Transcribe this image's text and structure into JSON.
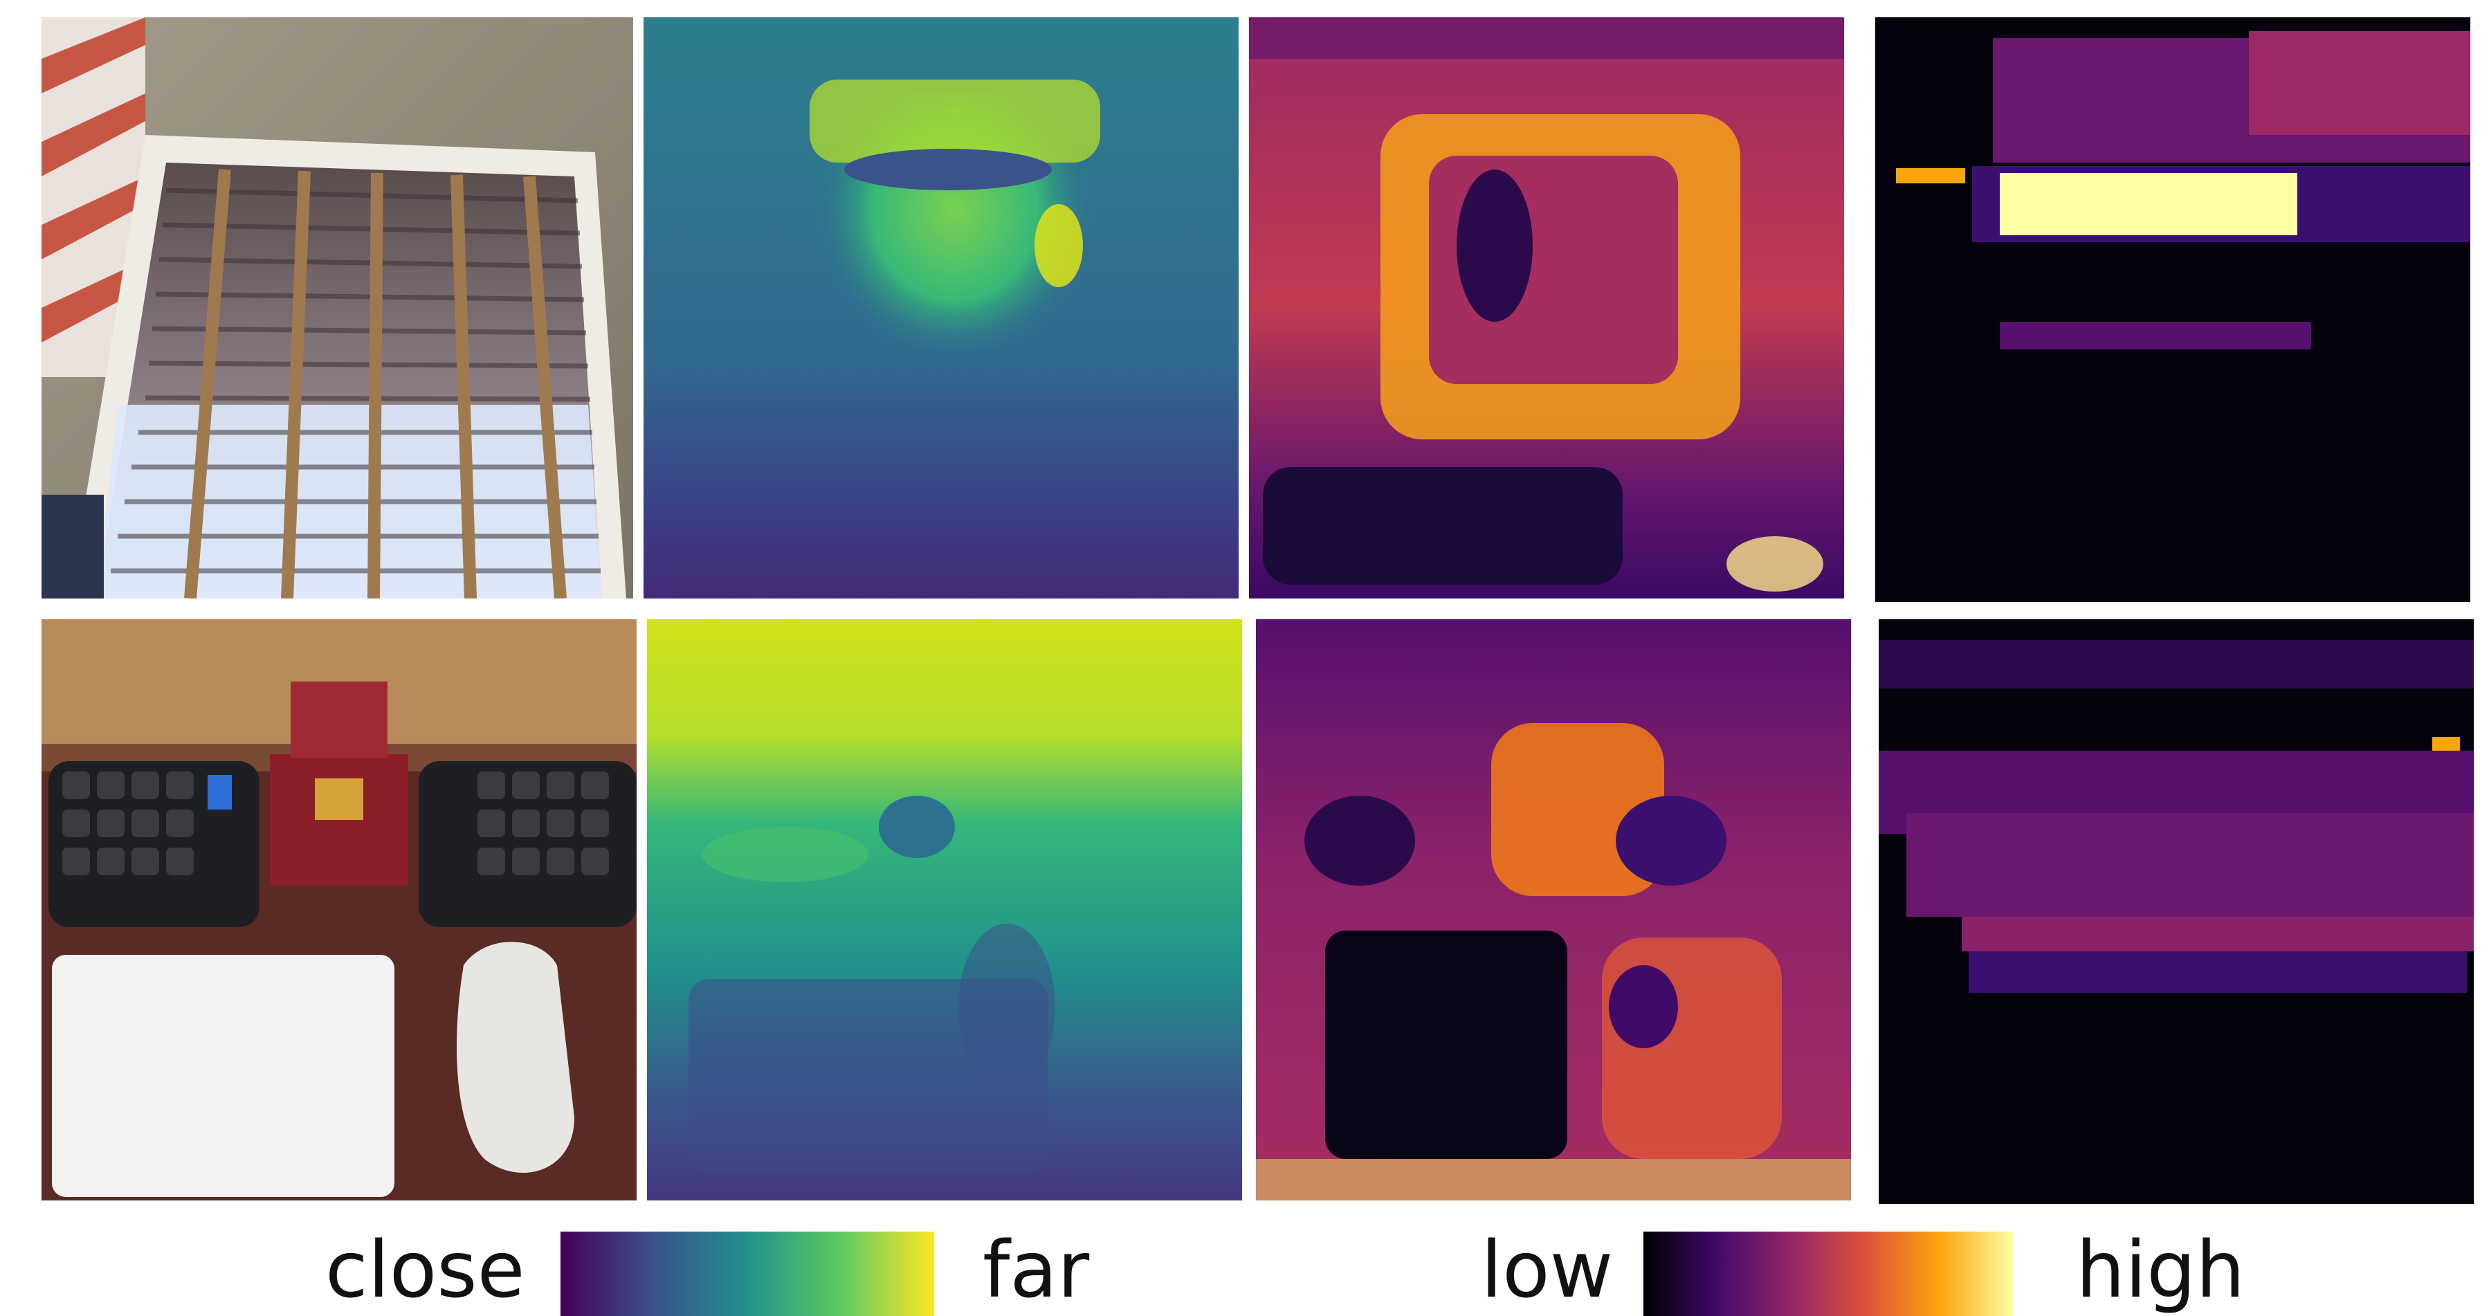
{
  "figure": {
    "rows": [
      {
        "name": "window-blinds-scene",
        "panels": [
          "photo-window-blinds",
          "depth-map-viridis",
          "heatmap-inferno",
          "heatmap-inferno-sparse"
        ]
      },
      {
        "name": "desk-keyboard-scene",
        "panels": [
          "photo-desk-keyboards",
          "depth-map-viridis",
          "heatmap-inferno",
          "heatmap-inferno-sparse"
        ]
      }
    ],
    "colors": {
      "viridis": [
        "#440154",
        "#3b528b",
        "#21918c",
        "#5ec962",
        "#fde725"
      ],
      "inferno": [
        "#000004",
        "#420a68",
        "#932667",
        "#dd513a",
        "#fca50a",
        "#fcffa4"
      ]
    }
  },
  "legend": {
    "depth": {
      "low_label": "close",
      "high_label": "far",
      "colormap": "viridis"
    },
    "score": {
      "low_label": "low",
      "high_label": "high",
      "colormap": "inferno"
    }
  }
}
